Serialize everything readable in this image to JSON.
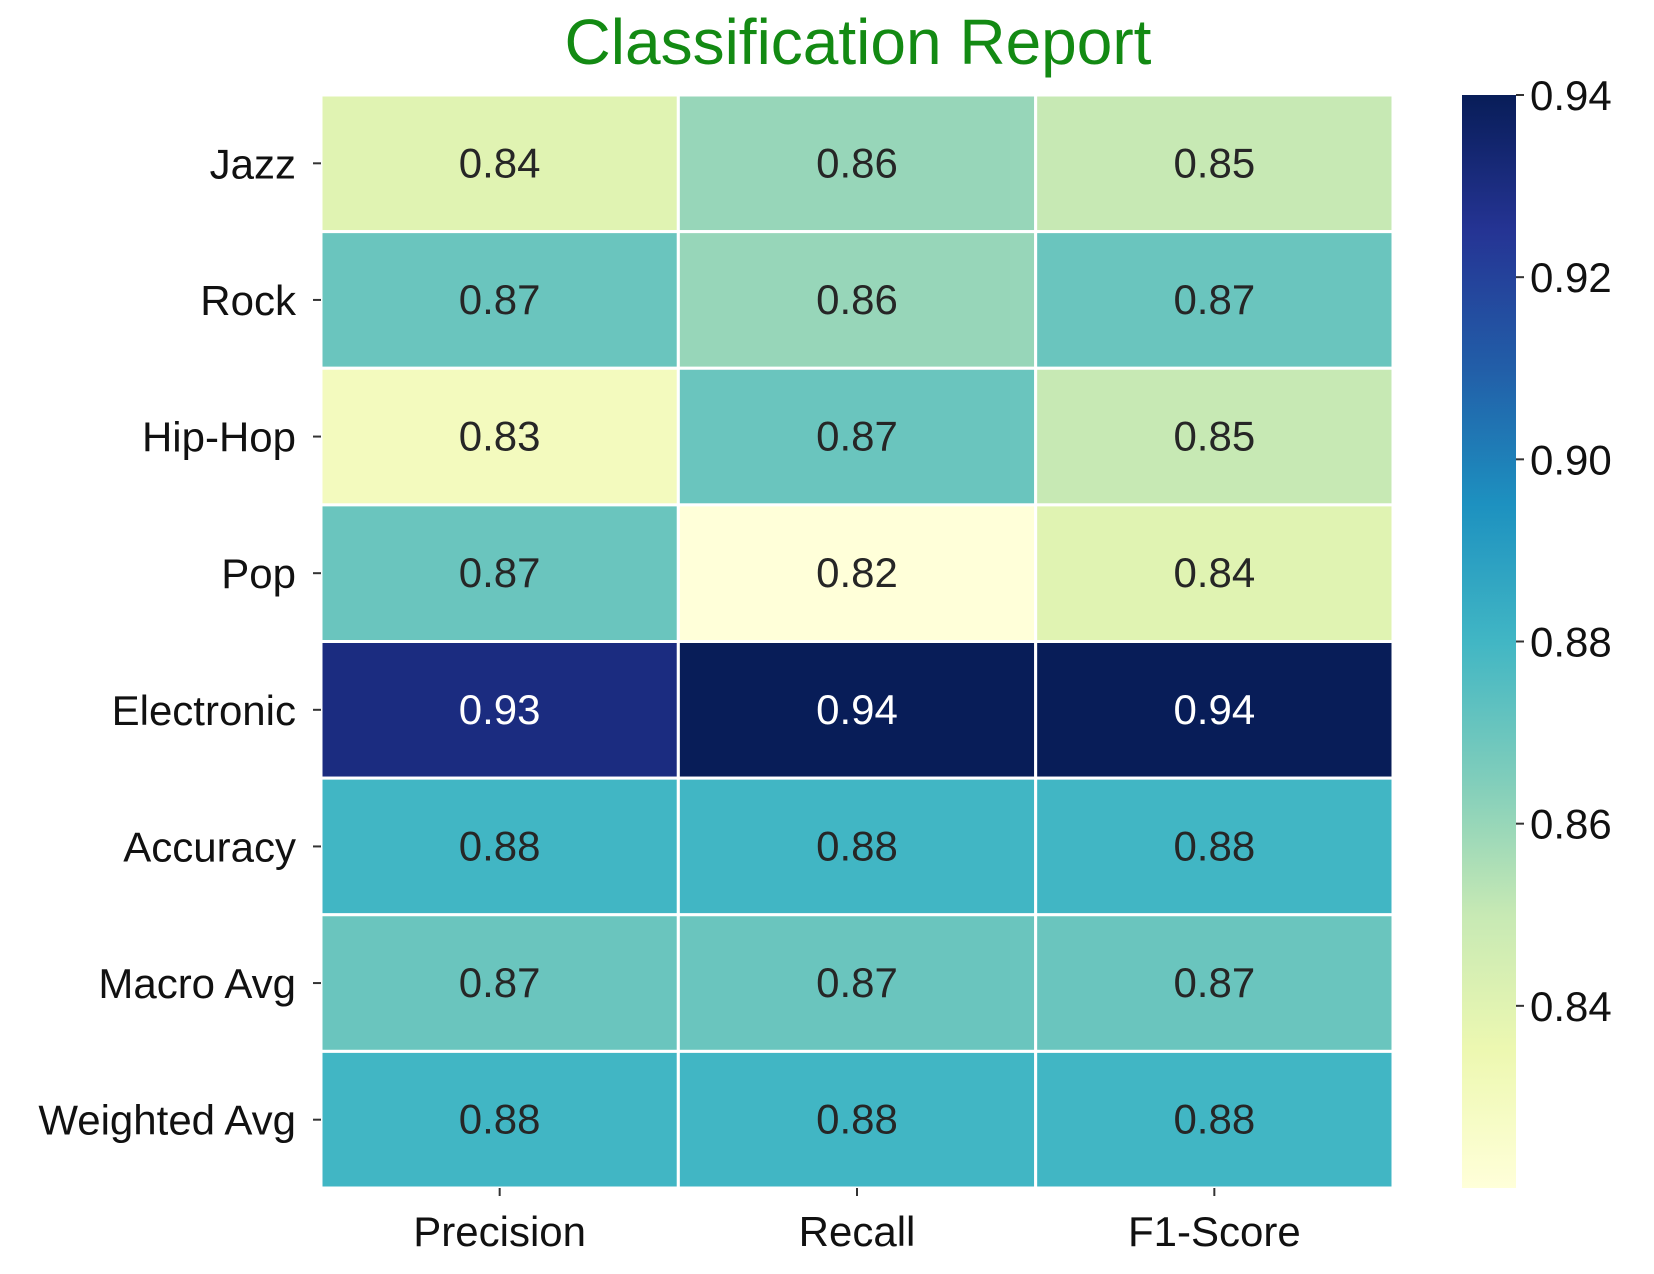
{
  "chart_data": {
    "type": "heatmap",
    "title": "Classification Report",
    "rows": [
      "Jazz",
      "Rock",
      "Hip-Hop",
      "Pop",
      "Electronic",
      "Accuracy",
      "Macro Avg",
      "Weighted Avg"
    ],
    "columns": [
      "Precision",
      "Recall",
      "F1-Score"
    ],
    "values": [
      [
        0.84,
        0.86,
        0.85
      ],
      [
        0.87,
        0.86,
        0.87
      ],
      [
        0.83,
        0.87,
        0.85
      ],
      [
        0.87,
        0.82,
        0.84
      ],
      [
        0.93,
        0.94,
        0.94
      ],
      [
        0.88,
        0.88,
        0.88
      ],
      [
        0.87,
        0.87,
        0.87
      ],
      [
        0.88,
        0.88,
        0.88
      ]
    ],
    "colorbar": {
      "range": [
        0.82,
        0.94
      ],
      "ticks": [
        0.84,
        0.86,
        0.88,
        0.9,
        0.92,
        0.94
      ],
      "tick_labels": [
        "0.84",
        "0.86",
        "0.88",
        "0.90",
        "0.92",
        "0.94"
      ],
      "colormap": "YlGnBu"
    },
    "colors": {
      "title": "#138a13",
      "cell_border": "#ffffff",
      "dark_text": "#262626",
      "light_text": "#ffffff"
    }
  }
}
